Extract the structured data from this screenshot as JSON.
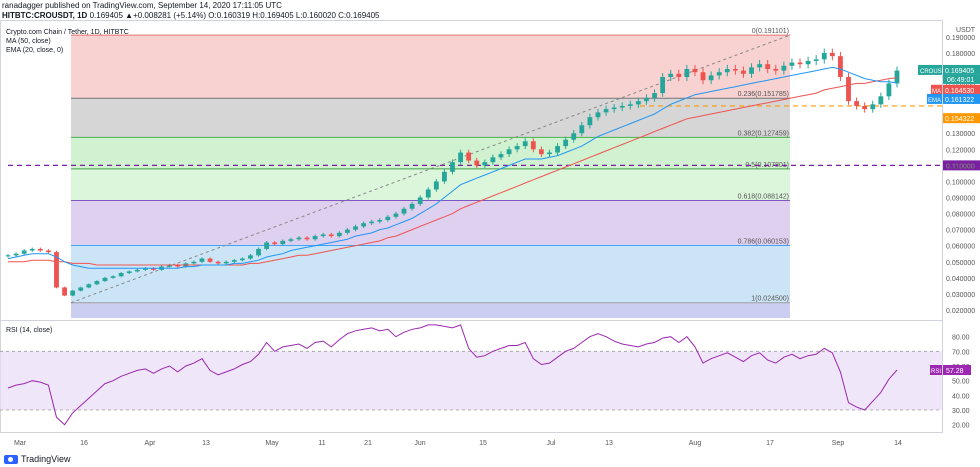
{
  "header": {
    "publisher": "ranadagger published on TradingView.com, September 14, 2020 17:11:05 UTC",
    "symbol": "HITBTC:CROUSDT, 1D",
    "ohlc": "0.169405 ▲+0.008281 (+5.14%) O:0.160319 H:0.169405 L:0.160020 C:0.169405"
  },
  "footer": {
    "brand": "TradingView"
  },
  "colors": {
    "up": "#26a69a",
    "down": "#ef5350",
    "ma": "#ef5350",
    "ema": "#2196f3",
    "rsi": "#9c27b0",
    "label_green": "#26a69a",
    "label_red": "#ef5350",
    "label_blue": "#2196f3",
    "label_orange": "#ff9800",
    "label_purple": "#7b1fa2"
  },
  "chart_data": [
    {
      "type": "candlestick",
      "title": "Crypto.com Chain / Tether, 1D, HITBTC",
      "indicators": [
        "MA (50, close)",
        "EMA (20, close, 0)"
      ],
      "currency": "USDT",
      "ylim": [
        0.015,
        0.198
      ],
      "y_ticks": [
        "0.190000",
        "0.180000",
        "0.170000",
        "0.160000",
        "0.150000",
        "0.140000",
        "0.130000",
        "0.120000",
        "0.110000",
        "0.100000",
        "0.090000",
        "0.080000",
        "0.070000",
        "0.060000",
        "0.050000",
        "0.040000",
        "0.030000",
        "0.020000"
      ],
      "x_ticks": [
        "Mar",
        "16",
        "Apr",
        "13",
        "May",
        "11",
        "21",
        "Jun",
        "15",
        "Jul",
        "13",
        "Aug",
        "17",
        "Sep",
        "14"
      ],
      "close_series": [
        0.054,
        0.055,
        0.057,
        0.058,
        0.057,
        0.056,
        0.034,
        0.029,
        0.032,
        0.034,
        0.036,
        0.038,
        0.04,
        0.041,
        0.043,
        0.044,
        0.045,
        0.046,
        0.045,
        0.047,
        0.048,
        0.047,
        0.049,
        0.05,
        0.052,
        0.05,
        0.049,
        0.05,
        0.051,
        0.052,
        0.054,
        0.058,
        0.062,
        0.061,
        0.063,
        0.064,
        0.065,
        0.064,
        0.066,
        0.067,
        0.066,
        0.068,
        0.07,
        0.072,
        0.074,
        0.075,
        0.076,
        0.078,
        0.08,
        0.083,
        0.086,
        0.09,
        0.095,
        0.1,
        0.106,
        0.112,
        0.118,
        0.113,
        0.11,
        0.112,
        0.115,
        0.117,
        0.12,
        0.122,
        0.125,
        0.12,
        0.117,
        0.118,
        0.122,
        0.126,
        0.13,
        0.135,
        0.14,
        0.143,
        0.145,
        0.146,
        0.147,
        0.148,
        0.15,
        0.152,
        0.155,
        0.165,
        0.167,
        0.165,
        0.17,
        0.168,
        0.163,
        0.166,
        0.168,
        0.17,
        0.169,
        0.167,
        0.171,
        0.173,
        0.17,
        0.169,
        0.172,
        0.174,
        0.173,
        0.175,
        0.176,
        0.18,
        0.178,
        0.165,
        0.15,
        0.147,
        0.145,
        0.148,
        0.153,
        0.161,
        0.169
      ],
      "ma_series": [
        0.05,
        0.05,
        0.05,
        0.051,
        0.051,
        0.051,
        0.05,
        0.05,
        0.049,
        0.049,
        0.049,
        0.048,
        0.048,
        0.048,
        0.048,
        0.048,
        0.048,
        0.048,
        0.048,
        0.048,
        0.048,
        0.048,
        0.048,
        0.048,
        0.048,
        0.048,
        0.048,
        0.048,
        0.048,
        0.048,
        0.049,
        0.049,
        0.05,
        0.051,
        0.052,
        0.053,
        0.054,
        0.054,
        0.055,
        0.056,
        0.057,
        0.058,
        0.059,
        0.06,
        0.061,
        0.062,
        0.063,
        0.065,
        0.066,
        0.068,
        0.07,
        0.072,
        0.074,
        0.076,
        0.078,
        0.08,
        0.083,
        0.085,
        0.087,
        0.089,
        0.091,
        0.093,
        0.095,
        0.097,
        0.099,
        0.101,
        0.103,
        0.105,
        0.107,
        0.109,
        0.111,
        0.113,
        0.115,
        0.117,
        0.119,
        0.121,
        0.123,
        0.125,
        0.127,
        0.129,
        0.131,
        0.133,
        0.135,
        0.137,
        0.139,
        0.14,
        0.141,
        0.142,
        0.143,
        0.144,
        0.145,
        0.146,
        0.147,
        0.148,
        0.149,
        0.15,
        0.151,
        0.152,
        0.153,
        0.154,
        0.155,
        0.157,
        0.158,
        0.159,
        0.16,
        0.161,
        0.161,
        0.162,
        0.163,
        0.164,
        0.1645
      ],
      "ema_series": [
        0.052,
        0.053,
        0.054,
        0.055,
        0.055,
        0.055,
        0.053,
        0.05,
        0.048,
        0.047,
        0.046,
        0.046,
        0.046,
        0.046,
        0.046,
        0.046,
        0.046,
        0.046,
        0.046,
        0.046,
        0.046,
        0.046,
        0.047,
        0.047,
        0.048,
        0.048,
        0.048,
        0.048,
        0.049,
        0.049,
        0.05,
        0.051,
        0.053,
        0.054,
        0.055,
        0.057,
        0.058,
        0.059,
        0.06,
        0.061,
        0.062,
        0.063,
        0.064,
        0.066,
        0.067,
        0.068,
        0.07,
        0.071,
        0.073,
        0.075,
        0.077,
        0.08,
        0.083,
        0.086,
        0.09,
        0.094,
        0.098,
        0.1,
        0.102,
        0.104,
        0.106,
        0.108,
        0.11,
        0.112,
        0.114,
        0.114,
        0.114,
        0.115,
        0.116,
        0.118,
        0.12,
        0.122,
        0.125,
        0.128,
        0.13,
        0.132,
        0.134,
        0.136,
        0.138,
        0.14,
        0.142,
        0.145,
        0.148,
        0.15,
        0.152,
        0.154,
        0.155,
        0.156,
        0.157,
        0.158,
        0.159,
        0.16,
        0.161,
        0.162,
        0.163,
        0.164,
        0.165,
        0.166,
        0.167,
        0.168,
        0.169,
        0.17,
        0.171,
        0.17,
        0.168,
        0.166,
        0.164,
        0.163,
        0.162,
        0.162,
        0.1613
      ],
      "fibonacci": [
        {
          "ratio": "0",
          "label": "0(0.191101)",
          "value": 0.191101
        },
        {
          "ratio": "0.236",
          "label": "0.236(0.151785)",
          "value": 0.151785
        },
        {
          "ratio": "0.382",
          "label": "0.382(0.127459)",
          "value": 0.127459
        },
        {
          "ratio": "0.5",
          "label": "0.5(0.107801)",
          "value": 0.107801
        },
        {
          "ratio": "0.618",
          "label": "0.618(0.088142)",
          "value": 0.088142
        },
        {
          "ratio": "0.786",
          "label": "0.786(0.060153)",
          "value": 0.060153
        },
        {
          "ratio": "1",
          "label": "1(0.024500)",
          "value": 0.0245
        }
      ],
      "horizontal_lines": [
        {
          "value": 0.11,
          "label": "0.110000",
          "style": "dashed",
          "color": "#7b1fa2"
        },
        {
          "value": 0.147,
          "label": "",
          "style": "dashed",
          "color": "#ff9800"
        }
      ],
      "price_labels": [
        {
          "name": "CROUSDT",
          "value": "0.169405",
          "countdown": "06:49:01"
        },
        {
          "name": "MA",
          "value": "0.164530"
        },
        {
          "name": "EMA",
          "value": "0.161322"
        },
        {
          "name": "",
          "value": "0.154322"
        }
      ]
    },
    {
      "type": "line",
      "title": "RSI (14, close)",
      "ylim": [
        15,
        90
      ],
      "y_ticks": [
        "80.00",
        "70.00",
        "60.00",
        "50.00",
        "40.00",
        "30.00",
        "20.00"
      ],
      "bands": [
        30,
        70
      ],
      "current": {
        "name": "RSI",
        "value": "57.28"
      },
      "values": [
        45,
        47,
        48,
        50,
        49,
        47,
        25,
        20,
        28,
        33,
        38,
        43,
        48,
        50,
        53,
        55,
        57,
        58,
        55,
        58,
        60,
        56,
        60,
        62,
        65,
        57,
        54,
        56,
        58,
        61,
        63,
        68,
        76,
        70,
        73,
        74,
        75,
        72,
        76,
        77,
        73,
        78,
        82,
        84,
        85,
        86,
        84,
        85,
        80,
        83,
        85,
        86,
        88,
        88,
        87,
        86,
        88,
        72,
        66,
        67,
        70,
        72,
        74,
        74,
        76,
        65,
        61,
        62,
        66,
        70,
        72,
        76,
        80,
        82,
        80,
        77,
        75,
        74,
        73,
        75,
        76,
        79,
        80,
        76,
        80,
        73,
        62,
        65,
        67,
        69,
        66,
        63,
        67,
        69,
        64,
        62,
        66,
        68,
        65,
        67,
        68,
        72,
        69,
        56,
        35,
        32,
        30,
        36,
        42,
        51,
        57.28
      ]
    }
  ]
}
